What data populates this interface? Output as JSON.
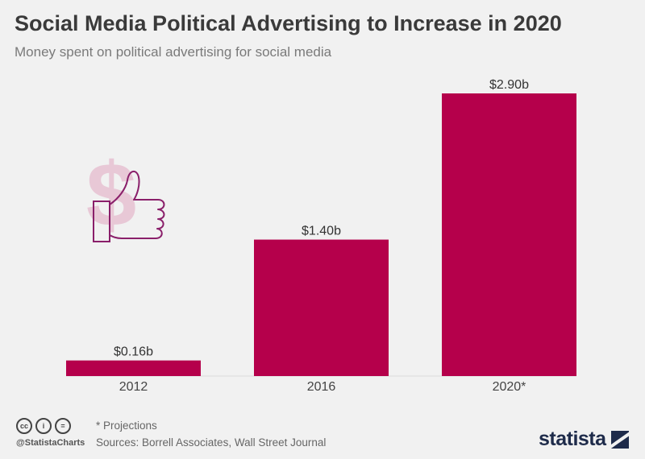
{
  "header": {
    "title": "Social Media Political Advertising to Increase in 2020",
    "subtitle": "Money spent on political advertising for social media"
  },
  "colors": {
    "bar": "#b5004b",
    "illustration_dollar": "#e8c8d6",
    "illustration_thumb": "#8a1f6a"
  },
  "chart_data": {
    "type": "bar",
    "title": "Social Media Political Advertising to Increase in 2020",
    "subtitle": "Money spent on political advertising for social media",
    "categories": [
      "2012",
      "2016",
      "2020*"
    ],
    "values": [
      0.16,
      1.4,
      2.9
    ],
    "data_labels": [
      "$0.16b",
      "$1.40b",
      "$2.90b"
    ],
    "unit": "billion USD",
    "ylim": [
      0,
      2.9
    ],
    "grid": false,
    "legend": "none"
  },
  "illustration": {
    "icon": "dollar-thumbs-up-icon"
  },
  "footer": {
    "cc_icons": [
      "cc",
      "i",
      "="
    ],
    "handle": "@StatistaCharts",
    "footnote": "* Projections",
    "sources": "Sources: Borrell Associates, Wall Street Journal",
    "brand": "statista"
  }
}
